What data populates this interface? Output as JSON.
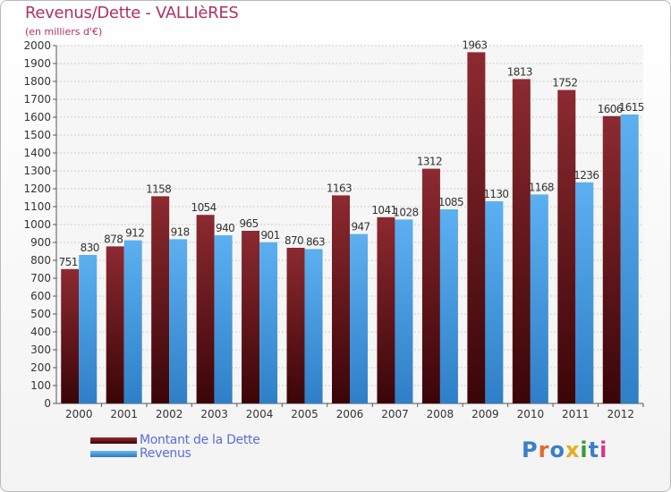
{
  "title": "Revenus/Dette - VALLIèRES",
  "subtitle": "(en milliers d'€)",
  "colors": {
    "debt": "#7a1f25",
    "revenue": "#4a9ee0",
    "title": "#b03060",
    "legend_text": "#5a6ed4"
  },
  "logo": {
    "text": "Proxiti",
    "letter_colors": [
      "#3a7fc8",
      "#e06a2a",
      "#3a7fc8",
      "#e0b020",
      "#3a9a3a",
      "#3a7fc8",
      "#d23a8a"
    ]
  },
  "chart_data": {
    "type": "bar",
    "categories": [
      "2000",
      "2001",
      "2002",
      "2003",
      "2004",
      "2005",
      "2006",
      "2007",
      "2008",
      "2009",
      "2010",
      "2011",
      "2012"
    ],
    "series": [
      {
        "name": "Montant de la Dette",
        "values": [
          751,
          878,
          1158,
          1054,
          965,
          870,
          1163,
          1041,
          1312,
          1963,
          1813,
          1752,
          1606
        ]
      },
      {
        "name": "Revenus",
        "values": [
          830,
          912,
          918,
          940,
          901,
          863,
          947,
          1028,
          1085,
          1130,
          1168,
          1236,
          1615
        ]
      }
    ],
    "ylim": [
      0,
      2000
    ],
    "ytick_step": 100,
    "grid": true,
    "legend": "bottom-left",
    "data_labels": true
  }
}
